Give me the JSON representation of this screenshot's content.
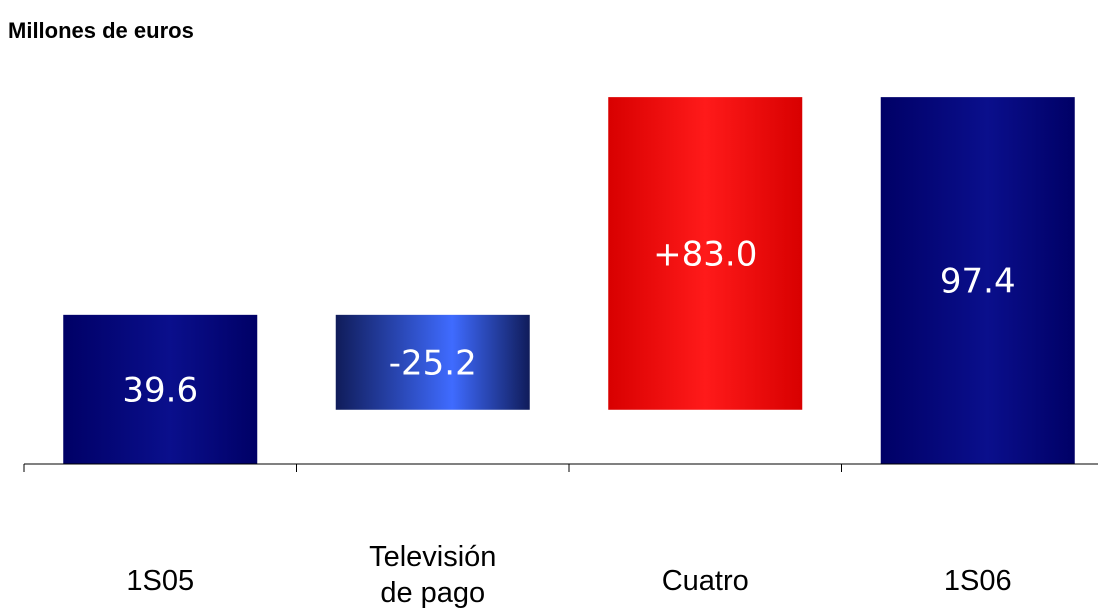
{
  "unit_label": "Millones de euros",
  "colors": {
    "total_dark": "#000066",
    "total_mid": "#0a0f8c",
    "decrease_dark": "#101c5a",
    "decrease_light": "#3f6bff",
    "increase_dark": "#d80000",
    "increase_light": "#ff1a1a"
  },
  "chart_data": {
    "type": "bar",
    "subtype": "waterfall",
    "title": "",
    "ylabel": "Millones de euros",
    "xlabel": "",
    "ylim": [
      0,
      120
    ],
    "grid": false,
    "categories": [
      "1S05",
      "Televisión de pago",
      "Cuatro",
      "1S06"
    ],
    "category_lines": [
      [
        "1S05"
      ],
      [
        "Televisión",
        "de pago"
      ],
      [
        "Cuatro"
      ],
      [
        "1S06"
      ]
    ],
    "steps": [
      {
        "kind": "total",
        "value": 39.6,
        "label": "39.6"
      },
      {
        "kind": "decrease",
        "value": -25.2,
        "label": "-25.2"
      },
      {
        "kind": "increase",
        "value": 83.0,
        "label": "+83.0"
      },
      {
        "kind": "total",
        "value": 97.4,
        "label": "97.4"
      }
    ]
  }
}
